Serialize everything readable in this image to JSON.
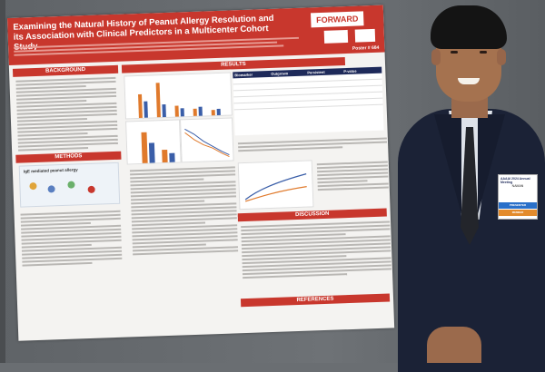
{
  "poster": {
    "title": "Examining the Natural History of Peanut Allergy Resolution and its Association with Clinical Predictors in a Multicenter Cohort Study",
    "brand": "FORWARD",
    "poster_number": "Poster # 684",
    "sections": {
      "background": "BACKGROUND",
      "methods": "METHODS",
      "results": "RESULTS",
      "discussion": "DISCUSSION",
      "references": "REFERENCES"
    },
    "methods_figure_label": "IgE mediated peanut allergy",
    "table_headers": [
      "Biomarker",
      "Outgrown",
      "Persistent",
      "P-value"
    ]
  },
  "badge": {
    "org": "AAAAI 2024 Annual Meeting",
    "name": "NAMAN",
    "strip": "PRESENTER",
    "strip2": "MEMBER"
  },
  "colors": {
    "poster_header": "#c8372d",
    "table_header": "#1e2a5a",
    "jacket": "#1b2236"
  }
}
